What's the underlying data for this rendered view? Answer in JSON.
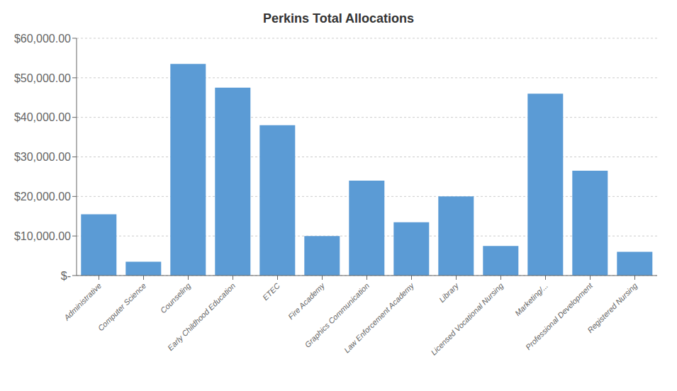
{
  "chart_data": {
    "type": "bar",
    "title": "Perkins Total Allocations",
    "categories": [
      "Administrative",
      "Computer Science",
      "Counseling",
      "Early Childhood Education",
      "ETEC",
      "Fire Academy",
      "Graphics Communication",
      "Law Enforcement Academy",
      "Library",
      "Licensed Vocational Nursing",
      "Marketing/...",
      "Professional Development",
      "Registered Nursing"
    ],
    "values": [
      15500,
      3500,
      53500,
      47500,
      38000,
      10000,
      24000,
      13500,
      20000,
      7500,
      46000,
      26500,
      6000
    ],
    "color": "#5B9BD5",
    "ylim": [
      0,
      60000
    ],
    "yticks": [
      {
        "value": 0,
        "label": "$-"
      },
      {
        "value": 10000,
        "label": "$10,000.00"
      },
      {
        "value": 20000,
        "label": "$20,000.00"
      },
      {
        "value": 30000,
        "label": "$30,000.00"
      },
      {
        "value": 40000,
        "label": "$40,000.00"
      },
      {
        "value": 50000,
        "label": "$50,000.00"
      },
      {
        "value": 60000,
        "label": "$60,000.00"
      }
    ],
    "grid": true
  }
}
